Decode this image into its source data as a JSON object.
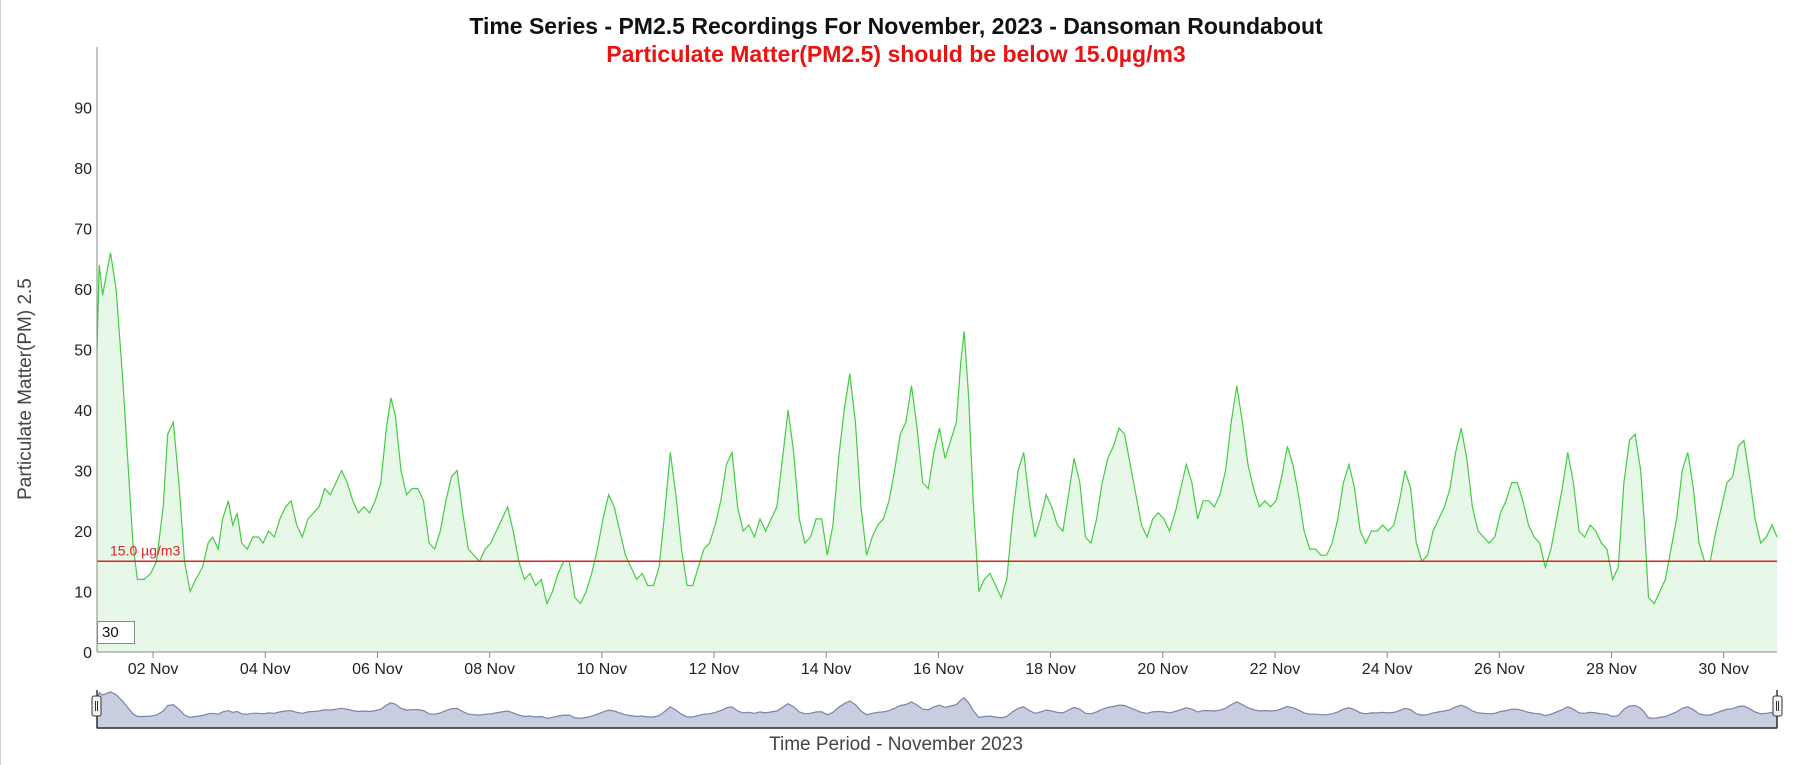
{
  "chart_data": {
    "type": "area",
    "title": "Time Series - PM2.5 Recordings For November, 2023 - Dansoman Roundabout",
    "subtitle": "Particulate Matter(PM2.5) should be below 15.0µg/m3",
    "ylabel": "Particulate Matter(PM) 2.5",
    "xlabel": "Time Period - November 2023",
    "ylim": [
      0,
      100
    ],
    "xlim": [
      1.0,
      30.95
    ],
    "y_ticks": [
      "0",
      "10",
      "20",
      "30",
      "40",
      "50",
      "60",
      "70",
      "80",
      "90"
    ],
    "x_ticks": [
      {
        "day": 2,
        "label": "02 Nov"
      },
      {
        "day": 4,
        "label": "04 Nov"
      },
      {
        "day": 6,
        "label": "06 Nov"
      },
      {
        "day": 8,
        "label": "08 Nov"
      },
      {
        "day": 10,
        "label": "10 Nov"
      },
      {
        "day": 12,
        "label": "12 Nov"
      },
      {
        "day": 14,
        "label": "14 Nov"
      },
      {
        "day": 16,
        "label": "16 Nov"
      },
      {
        "day": 18,
        "label": "18 Nov"
      },
      {
        "day": 20,
        "label": "20 Nov"
      },
      {
        "day": 22,
        "label": "22 Nov"
      },
      {
        "day": 24,
        "label": "24 Nov"
      },
      {
        "day": 26,
        "label": "26 Nov"
      },
      {
        "day": 28,
        "label": "28 Nov"
      },
      {
        "day": 30,
        "label": "30 Nov"
      }
    ],
    "threshold": {
      "value": 15.0,
      "label": "15.0 µg/m3",
      "color": "#dd2222"
    },
    "series": [
      {
        "color": "#44cc44",
        "fill": "#e8f8e8",
        "points": [
          [
            1.0,
            50
          ],
          [
            1.04,
            64
          ],
          [
            1.1,
            59
          ],
          [
            1.16,
            62
          ],
          [
            1.24,
            66
          ],
          [
            1.34,
            60
          ],
          [
            1.46,
            45
          ],
          [
            1.56,
            30
          ],
          [
            1.64,
            18
          ],
          [
            1.72,
            12
          ],
          [
            1.84,
            12
          ],
          [
            1.96,
            13
          ],
          [
            2.06,
            15
          ],
          [
            2.18,
            24
          ],
          [
            2.26,
            36
          ],
          [
            2.36,
            38
          ],
          [
            2.46,
            28
          ],
          [
            2.56,
            15
          ],
          [
            2.66,
            10
          ],
          [
            2.76,
            12
          ],
          [
            2.88,
            14
          ],
          [
            2.98,
            18
          ],
          [
            3.06,
            19
          ],
          [
            3.16,
            17
          ],
          [
            3.24,
            22
          ],
          [
            3.34,
            25
          ],
          [
            3.42,
            21
          ],
          [
            3.5,
            23
          ],
          [
            3.58,
            18
          ],
          [
            3.68,
            17
          ],
          [
            3.78,
            19
          ],
          [
            3.88,
            19
          ],
          [
            3.96,
            18
          ],
          [
            4.06,
            20
          ],
          [
            4.16,
            19
          ],
          [
            4.26,
            22
          ],
          [
            4.36,
            24
          ],
          [
            4.46,
            25
          ],
          [
            4.56,
            21
          ],
          [
            4.66,
            19
          ],
          [
            4.76,
            22
          ],
          [
            4.86,
            23
          ],
          [
            4.96,
            24
          ],
          [
            5.06,
            27
          ],
          [
            5.16,
            26
          ],
          [
            5.26,
            28
          ],
          [
            5.36,
            30
          ],
          [
            5.46,
            28
          ],
          [
            5.56,
            25
          ],
          [
            5.66,
            23
          ],
          [
            5.76,
            24
          ],
          [
            5.86,
            23
          ],
          [
            5.96,
            25
          ],
          [
            6.06,
            28
          ],
          [
            6.16,
            37
          ],
          [
            6.24,
            42
          ],
          [
            6.32,
            39
          ],
          [
            6.42,
            30
          ],
          [
            6.52,
            26
          ],
          [
            6.62,
            27
          ],
          [
            6.72,
            27
          ],
          [
            6.82,
            25
          ],
          [
            6.92,
            18
          ],
          [
            7.02,
            17
          ],
          [
            7.12,
            20
          ],
          [
            7.22,
            25
          ],
          [
            7.32,
            29
          ],
          [
            7.42,
            30
          ],
          [
            7.52,
            23
          ],
          [
            7.62,
            17
          ],
          [
            7.72,
            16
          ],
          [
            7.82,
            15
          ],
          [
            7.92,
            17
          ],
          [
            8.02,
            18
          ],
          [
            8.12,
            20
          ],
          [
            8.22,
            22
          ],
          [
            8.32,
            24
          ],
          [
            8.42,
            20
          ],
          [
            8.52,
            15
          ],
          [
            8.62,
            12
          ],
          [
            8.72,
            13
          ],
          [
            8.82,
            11
          ],
          [
            8.92,
            12
          ],
          [
            9.02,
            8
          ],
          [
            9.12,
            10
          ],
          [
            9.22,
            13
          ],
          [
            9.32,
            15
          ],
          [
            9.42,
            15
          ],
          [
            9.52,
            9
          ],
          [
            9.62,
            8
          ],
          [
            9.72,
            10
          ],
          [
            9.82,
            13
          ],
          [
            9.92,
            17
          ],
          [
            10.02,
            22
          ],
          [
            10.12,
            26
          ],
          [
            10.22,
            24
          ],
          [
            10.32,
            20
          ],
          [
            10.42,
            16
          ],
          [
            10.52,
            14
          ],
          [
            10.62,
            12
          ],
          [
            10.72,
            13
          ],
          [
            10.82,
            11
          ],
          [
            10.92,
            11
          ],
          [
            11.02,
            14
          ],
          [
            11.12,
            23
          ],
          [
            11.22,
            33
          ],
          [
            11.32,
            26
          ],
          [
            11.42,
            17
          ],
          [
            11.52,
            11
          ],
          [
            11.62,
            11
          ],
          [
            11.72,
            14
          ],
          [
            11.82,
            17
          ],
          [
            11.92,
            18
          ],
          [
            12.02,
            21
          ],
          [
            12.12,
            25
          ],
          [
            12.22,
            31
          ],
          [
            12.32,
            33
          ],
          [
            12.42,
            24
          ],
          [
            12.52,
            20
          ],
          [
            12.62,
            21
          ],
          [
            12.72,
            19
          ],
          [
            12.82,
            22
          ],
          [
            12.92,
            20
          ],
          [
            13.02,
            22
          ],
          [
            13.12,
            24
          ],
          [
            13.22,
            32
          ],
          [
            13.32,
            40
          ],
          [
            13.42,
            33
          ],
          [
            13.52,
            22
          ],
          [
            13.62,
            18
          ],
          [
            13.72,
            19
          ],
          [
            13.82,
            22
          ],
          [
            13.92,
            22
          ],
          [
            14.02,
            16
          ],
          [
            14.12,
            21
          ],
          [
            14.22,
            32
          ],
          [
            14.32,
            40
          ],
          [
            14.42,
            46
          ],
          [
            14.52,
            38
          ],
          [
            14.62,
            24
          ],
          [
            14.72,
            16
          ],
          [
            14.82,
            19
          ],
          [
            14.92,
            21
          ],
          [
            15.02,
            22
          ],
          [
            15.12,
            25
          ],
          [
            15.22,
            30
          ],
          [
            15.32,
            36
          ],
          [
            15.42,
            38
          ],
          [
            15.52,
            44
          ],
          [
            15.62,
            37
          ],
          [
            15.72,
            28
          ],
          [
            15.82,
            27
          ],
          [
            15.92,
            33
          ],
          [
            16.02,
            37
          ],
          [
            16.12,
            32
          ],
          [
            16.22,
            35
          ],
          [
            16.32,
            38
          ],
          [
            16.4,
            48
          ],
          [
            16.46,
            53
          ],
          [
            16.54,
            42
          ],
          [
            16.62,
            25
          ],
          [
            16.72,
            10
          ],
          [
            16.82,
            12
          ],
          [
            16.92,
            13
          ],
          [
            17.02,
            11
          ],
          [
            17.12,
            9
          ],
          [
            17.22,
            12
          ],
          [
            17.32,
            22
          ],
          [
            17.42,
            30
          ],
          [
            17.52,
            33
          ],
          [
            17.62,
            25
          ],
          [
            17.72,
            19
          ],
          [
            17.82,
            22
          ],
          [
            17.92,
            26
          ],
          [
            18.02,
            24
          ],
          [
            18.12,
            21
          ],
          [
            18.22,
            20
          ],
          [
            18.32,
            26
          ],
          [
            18.42,
            32
          ],
          [
            18.52,
            28
          ],
          [
            18.62,
            19
          ],
          [
            18.72,
            18
          ],
          [
            18.82,
            22
          ],
          [
            18.92,
            28
          ],
          [
            19.02,
            32
          ],
          [
            19.12,
            34
          ],
          [
            19.22,
            37
          ],
          [
            19.32,
            36
          ],
          [
            19.42,
            31
          ],
          [
            19.52,
            26
          ],
          [
            19.62,
            21
          ],
          [
            19.72,
            19
          ],
          [
            19.82,
            22
          ],
          [
            19.92,
            23
          ],
          [
            20.02,
            22
          ],
          [
            20.12,
            20
          ],
          [
            20.22,
            23
          ],
          [
            20.32,
            27
          ],
          [
            20.42,
            31
          ],
          [
            20.52,
            28
          ],
          [
            20.62,
            22
          ],
          [
            20.72,
            25
          ],
          [
            20.82,
            25
          ],
          [
            20.92,
            24
          ],
          [
            21.02,
            26
          ],
          [
            21.12,
            30
          ],
          [
            21.22,
            38
          ],
          [
            21.32,
            44
          ],
          [
            21.42,
            38
          ],
          [
            21.52,
            31
          ],
          [
            21.62,
            27
          ],
          [
            21.72,
            24
          ],
          [
            21.82,
            25
          ],
          [
            21.92,
            24
          ],
          [
            22.02,
            25
          ],
          [
            22.12,
            29
          ],
          [
            22.22,
            34
          ],
          [
            22.32,
            31
          ],
          [
            22.42,
            26
          ],
          [
            22.52,
            20
          ],
          [
            22.62,
            17
          ],
          [
            22.72,
            17
          ],
          [
            22.82,
            16
          ],
          [
            22.92,
            16
          ],
          [
            23.02,
            18
          ],
          [
            23.12,
            22
          ],
          [
            23.22,
            28
          ],
          [
            23.32,
            31
          ],
          [
            23.42,
            27
          ],
          [
            23.52,
            20
          ],
          [
            23.62,
            18
          ],
          [
            23.72,
            20
          ],
          [
            23.82,
            20
          ],
          [
            23.92,
            21
          ],
          [
            24.02,
            20
          ],
          [
            24.12,
            21
          ],
          [
            24.22,
            25
          ],
          [
            24.32,
            30
          ],
          [
            24.42,
            27
          ],
          [
            24.52,
            18
          ],
          [
            24.62,
            15
          ],
          [
            24.72,
            16
          ],
          [
            24.82,
            20
          ],
          [
            24.92,
            22
          ],
          [
            25.02,
            24
          ],
          [
            25.12,
            27
          ],
          [
            25.22,
            33
          ],
          [
            25.32,
            37
          ],
          [
            25.42,
            32
          ],
          [
            25.52,
            24
          ],
          [
            25.62,
            20
          ],
          [
            25.72,
            19
          ],
          [
            25.82,
            18
          ],
          [
            25.92,
            19
          ],
          [
            26.02,
            23
          ],
          [
            26.12,
            25
          ],
          [
            26.22,
            28
          ],
          [
            26.32,
            28
          ],
          [
            26.42,
            25
          ],
          [
            26.52,
            21
          ],
          [
            26.62,
            19
          ],
          [
            26.72,
            18
          ],
          [
            26.82,
            14
          ],
          [
            26.92,
            17
          ],
          [
            27.02,
            22
          ],
          [
            27.12,
            27
          ],
          [
            27.22,
            33
          ],
          [
            27.32,
            28
          ],
          [
            27.42,
            20
          ],
          [
            27.52,
            19
          ],
          [
            27.62,
            21
          ],
          [
            27.72,
            20
          ],
          [
            27.82,
            18
          ],
          [
            27.92,
            17
          ],
          [
            28.02,
            12
          ],
          [
            28.12,
            14
          ],
          [
            28.22,
            28
          ],
          [
            28.32,
            35
          ],
          [
            28.42,
            36
          ],
          [
            28.52,
            30
          ],
          [
            28.58,
            22
          ],
          [
            28.66,
            9
          ],
          [
            28.76,
            8
          ],
          [
            28.86,
            10
          ],
          [
            28.96,
            12
          ],
          [
            29.06,
            17
          ],
          [
            29.16,
            22
          ],
          [
            29.26,
            30
          ],
          [
            29.36,
            33
          ],
          [
            29.46,
            27
          ],
          [
            29.56,
            18
          ],
          [
            29.66,
            15
          ],
          [
            29.76,
            15
          ],
          [
            29.86,
            20
          ],
          [
            29.96,
            24
          ],
          [
            30.06,
            28
          ],
          [
            30.16,
            29
          ],
          [
            30.26,
            34
          ],
          [
            30.36,
            35
          ],
          [
            30.46,
            29
          ],
          [
            30.56,
            22
          ],
          [
            30.66,
            18
          ],
          [
            30.76,
            19
          ],
          [
            30.86,
            21
          ],
          [
            30.95,
            19
          ]
        ]
      }
    ],
    "navigator": {
      "fill": "#c8cde0",
      "line": "#7a84a8"
    },
    "grid": false,
    "legend": "none",
    "range_selector_value": "30"
  }
}
